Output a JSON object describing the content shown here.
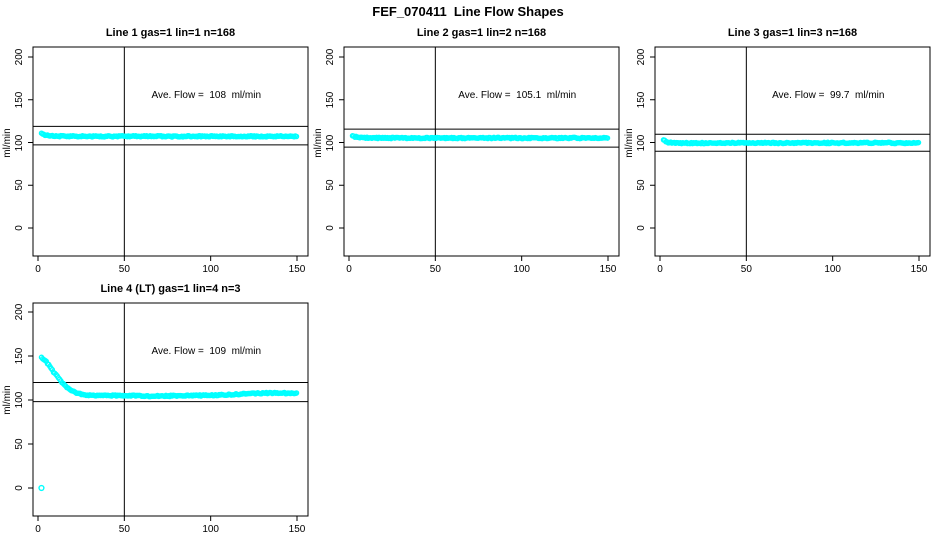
{
  "title": "FEF_070411  Line Flow Shapes",
  "marker": "open-circle",
  "marker_color": "#00FFFF",
  "axis_color": "#000000",
  "background_color": "#FFFFFF",
  "chart_data": [
    {
      "type": "scatter",
      "title": "Line 1 gas=1 lin=1 n=168",
      "line": 1,
      "gas": 1,
      "lin": 1,
      "n": 168,
      "annotation": "Ave. Flow =  108  ml/min",
      "ave_flow": 108,
      "xlabel": "",
      "ylabel": "ml/min",
      "xticks": [
        0,
        50,
        100,
        150
      ],
      "yticks": [
        0,
        50,
        100,
        150,
        200
      ],
      "xlim": [
        0,
        155
      ],
      "ylim": [
        0,
        210
      ],
      "grid": false,
      "legend": "none",
      "vline_x": 50,
      "hlines": [
        97.2,
        118.8
      ],
      "anchor_points": [
        [
          2,
          110.5
        ],
        [
          3,
          109.5
        ],
        [
          4,
          108.5
        ],
        [
          6,
          108
        ],
        [
          10,
          107.5
        ],
        [
          20,
          107.3
        ],
        [
          40,
          107.2
        ],
        [
          60,
          107.4
        ],
        [
          80,
          107.1
        ],
        [
          100,
          107.3
        ],
        [
          120,
          107.2
        ],
        [
          140,
          107.3
        ],
        [
          150,
          106.9
        ]
      ],
      "extra_points": []
    },
    {
      "type": "scatter",
      "title": "Line 2 gas=1 lin=2 n=168",
      "line": 2,
      "gas": 1,
      "lin": 2,
      "n": 168,
      "annotation": "Ave. Flow =  105.1  ml/min",
      "ave_flow": 105.1,
      "xlabel": "",
      "ylabel": "ml/min",
      "xticks": [
        0,
        50,
        100,
        150
      ],
      "yticks": [
        0,
        50,
        100,
        150,
        200
      ],
      "xlim": [
        0,
        155
      ],
      "ylim": [
        0,
        210
      ],
      "grid": false,
      "legend": "none",
      "vline_x": 50,
      "hlines": [
        94.6,
        115.6
      ],
      "anchor_points": [
        [
          2,
          108
        ],
        [
          3,
          107
        ],
        [
          5,
          106
        ],
        [
          10,
          105.5
        ],
        [
          20,
          105.3
        ],
        [
          50,
          105.2
        ],
        [
          80,
          105.3
        ],
        [
          110,
          105.2
        ],
        [
          140,
          105.3
        ],
        [
          150,
          105.2
        ]
      ],
      "extra_points": []
    },
    {
      "type": "scatter",
      "title": "Line 3 gas=1 lin=3 n=168",
      "line": 3,
      "gas": 1,
      "lin": 3,
      "n": 168,
      "annotation": "Ave. Flow =  99.7  ml/min",
      "ave_flow": 99.7,
      "xlabel": "",
      "ylabel": "ml/min",
      "xticks": [
        0,
        50,
        100,
        150
      ],
      "yticks": [
        0,
        50,
        100,
        150,
        200
      ],
      "xlim": [
        0,
        155
      ],
      "ylim": [
        0,
        210
      ],
      "grid": false,
      "legend": "none",
      "vline_x": 50,
      "hlines": [
        89.7,
        109.7
      ],
      "anchor_points": [
        [
          2,
          103
        ],
        [
          3,
          101.5
        ],
        [
          5,
          100
        ],
        [
          10,
          99.4
        ],
        [
          20,
          99.3
        ],
        [
          50,
          99.5
        ],
        [
          80,
          99.4
        ],
        [
          110,
          99.6
        ],
        [
          140,
          99.5
        ],
        [
          150,
          99.4
        ]
      ],
      "extra_points": []
    },
    {
      "type": "scatter",
      "title": "Line 4 (LT) gas=1 lin=4 n=3",
      "line": 4,
      "gas": 1,
      "lin": 4,
      "n": 3,
      "annotation": "Ave. Flow =  109  ml/min",
      "ave_flow": 109,
      "xlabel": "",
      "ylabel": "ml/min",
      "xticks": [
        0,
        50,
        100,
        150
      ],
      "yticks": [
        0,
        50,
        100,
        150,
        200
      ],
      "xlim": [
        0,
        155
      ],
      "ylim": [
        0,
        210
      ],
      "grid": false,
      "legend": "none",
      "vline_x": 50,
      "hlines": [
        98.1,
        119.9
      ],
      "anchor_points": [
        [
          2,
          148
        ],
        [
          3,
          147
        ],
        [
          4,
          145
        ],
        [
          5,
          143
        ],
        [
          6,
          140.5
        ],
        [
          7,
          138
        ],
        [
          8,
          135
        ],
        [
          9,
          132
        ],
        [
          10,
          129.5
        ],
        [
          11,
          127
        ],
        [
          12,
          124.5
        ],
        [
          13,
          122
        ],
        [
          14,
          119.5
        ],
        [
          15,
          117.5
        ],
        [
          16,
          115.5
        ],
        [
          17,
          113.8
        ],
        [
          18,
          112.3
        ],
        [
          19,
          111
        ],
        [
          20,
          110
        ],
        [
          22,
          108.3
        ],
        [
          24,
          107
        ],
        [
          26,
          106.3
        ],
        [
          28,
          105.9
        ],
        [
          30,
          105.6
        ],
        [
          35,
          105.2
        ],
        [
          40,
          105.1
        ],
        [
          45,
          105.2
        ],
        [
          50,
          105.2
        ],
        [
          55,
          105
        ],
        [
          60,
          104.7
        ],
        [
          65,
          104.5
        ],
        [
          70,
          104.5
        ],
        [
          75,
          104.6
        ],
        [
          80,
          104.8
        ],
        [
          85,
          104.9
        ],
        [
          90,
          105
        ],
        [
          95,
          105.2
        ],
        [
          100,
          105.4
        ],
        [
          105,
          105.7
        ],
        [
          110,
          106
        ],
        [
          115,
          106.5
        ],
        [
          120,
          107.2
        ],
        [
          125,
          107.6
        ],
        [
          130,
          107.8
        ],
        [
          135,
          107.9
        ],
        [
          140,
          107.9
        ],
        [
          145,
          107.8
        ],
        [
          150,
          107.4
        ]
      ],
      "extra_points": [
        [
          2,
          0
        ]
      ]
    }
  ]
}
